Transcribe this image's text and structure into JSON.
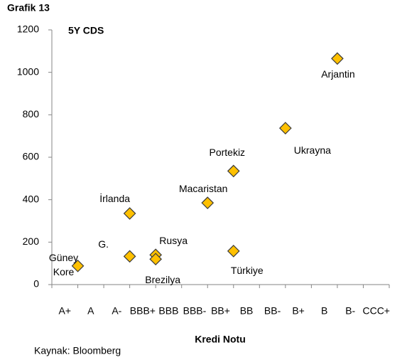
{
  "chart_data": {
    "type": "scatter",
    "title": "Grafik 13",
    "subtitle": "5Y CDS",
    "x_label": "Kredi Notu",
    "source": "Kaynak: Bloomberg",
    "categories": [
      "A+",
      "A",
      "A-",
      "BBB+",
      "BBB",
      "BBB-",
      "BB+",
      "BB",
      "BB-",
      "B+",
      "B",
      "B-",
      "CCC+"
    ],
    "points": [
      {
        "label": "Güney Kore",
        "category": "A",
        "value": 88
      },
      {
        "label": "G.",
        "category": "BBB+",
        "value": 133
      },
      {
        "label": "İrlanda",
        "category": "BBB+",
        "value": 335
      },
      {
        "label": "Rusya",
        "category": "BBB",
        "value": 140
      },
      {
        "label": "Brezilya",
        "category": "BBB",
        "value": 120
      },
      {
        "label": "Macaristan",
        "category": "BB+",
        "value": 385
      },
      {
        "label": "Portekiz",
        "category": "BB",
        "value": 535
      },
      {
        "label": "Türkiye",
        "category": "BB",
        "value": 158
      },
      {
        "label": "Ukrayna",
        "category": "B+",
        "value": 737
      },
      {
        "label": "Arjantin",
        "category": "B-",
        "value": 1065
      }
    ],
    "color": "#ffc000",
    "ylim": [
      0,
      1200
    ],
    "yticks": [
      0,
      200,
      400,
      600,
      800,
      1000,
      1200
    ],
    "grid": false
  }
}
